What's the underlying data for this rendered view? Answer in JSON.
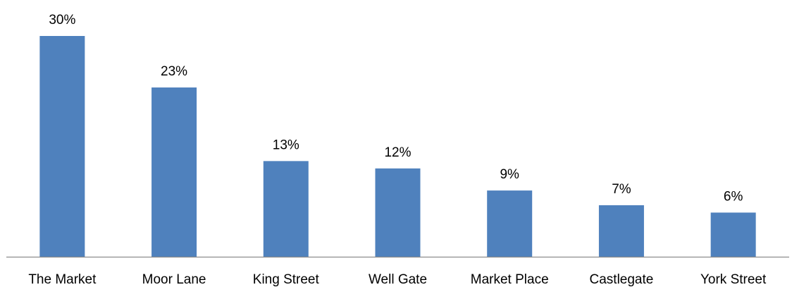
{
  "chart_data": {
    "type": "bar",
    "categories": [
      "The Market",
      "Moor Lane",
      "King Street",
      "Well Gate",
      "Market Place",
      "Castlegate",
      "York Street"
    ],
    "values": [
      30,
      23,
      13,
      12,
      9,
      7,
      6
    ],
    "value_labels": [
      "30%",
      "23%",
      "13%",
      "12%",
      "9%",
      "7%",
      "6%"
    ],
    "unit": "%",
    "title": "",
    "xlabel": "",
    "ylabel": "",
    "ylim": [
      0,
      30
    ],
    "grid": false,
    "legend": "none",
    "colors": {
      "bar": "#4F81BD",
      "axis": "#8C8C8C",
      "text": "#000000"
    }
  }
}
